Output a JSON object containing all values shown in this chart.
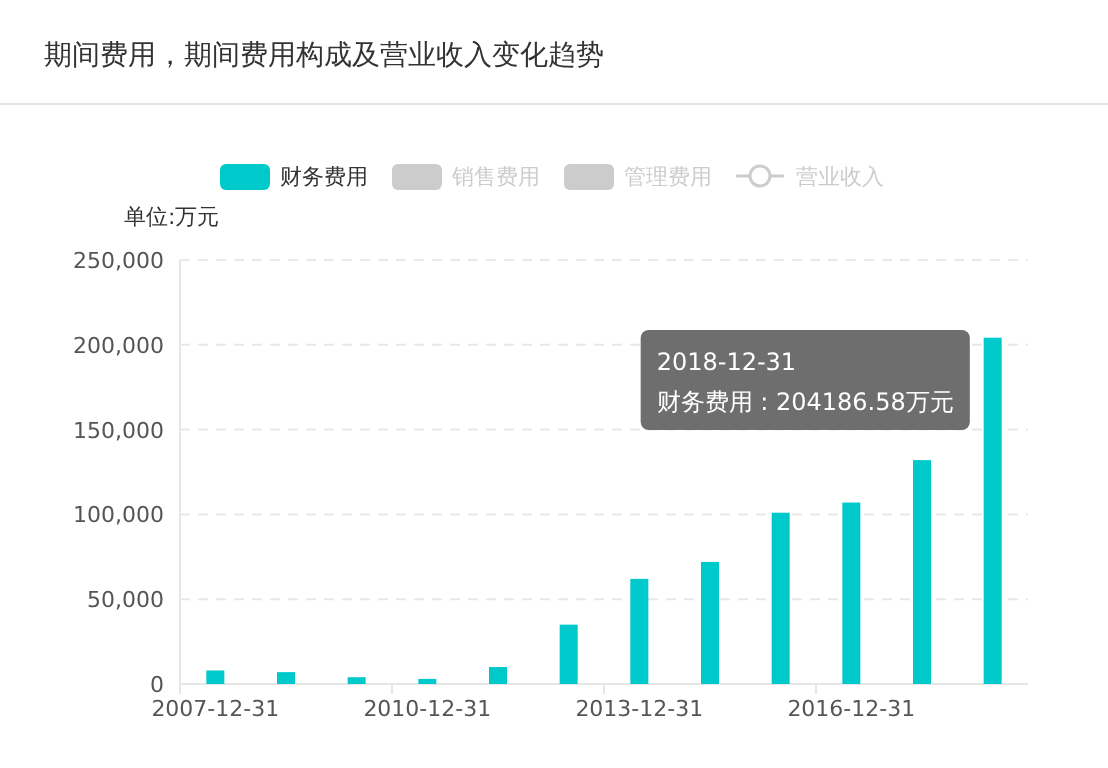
{
  "chart_data": {
    "type": "bar",
    "title": "期间费用，期间费用构成及营业收入变化趋势",
    "ylabel": "单位:万元",
    "categories": [
      "2007-12-31",
      null,
      null,
      "2010-12-31",
      null,
      null,
      "2013-12-31",
      null,
      null,
      "2016-12-31",
      null,
      null
    ],
    "series": [
      {
        "name": "财务费用",
        "color": "#00c9cc",
        "values": [
          8000,
          7000,
          4000,
          3000,
          10000,
          35000,
          62000,
          72000,
          101000,
          107000,
          132000,
          204186.58
        ]
      },
      {
        "name": "销售费用",
        "color": "#cccccc",
        "values": [
          null,
          null,
          null,
          null,
          null,
          null,
          null,
          null,
          null,
          null,
          null,
          null
        ]
      },
      {
        "name": "管理费用",
        "color": "#cccccc",
        "values": [
          null,
          null,
          null,
          null,
          null,
          null,
          null,
          null,
          null,
          null,
          null,
          null
        ]
      },
      {
        "name": "营业收入",
        "type": "line",
        "marker": "circle",
        "color": "#cccccc",
        "values": [
          null,
          null,
          null,
          null,
          null,
          null,
          null,
          null,
          null,
          null,
          null,
          null
        ]
      }
    ],
    "ylim": [
      0,
      250000
    ],
    "yticks": [
      0,
      {
        "value": 50000,
        "label": "50,000"
      },
      {
        "value": 100000,
        "label": "100,000"
      },
      {
        "value": 150000,
        "label": "150,000"
      },
      {
        "value": 200000,
        "label": "200,000"
      },
      {
        "value": 250000,
        "label": "250,000"
      }
    ],
    "grid": "y",
    "legend": "top",
    "annotations": [
      "2018-12-31\n财务费用 : 204186.58万元"
    ]
  }
}
